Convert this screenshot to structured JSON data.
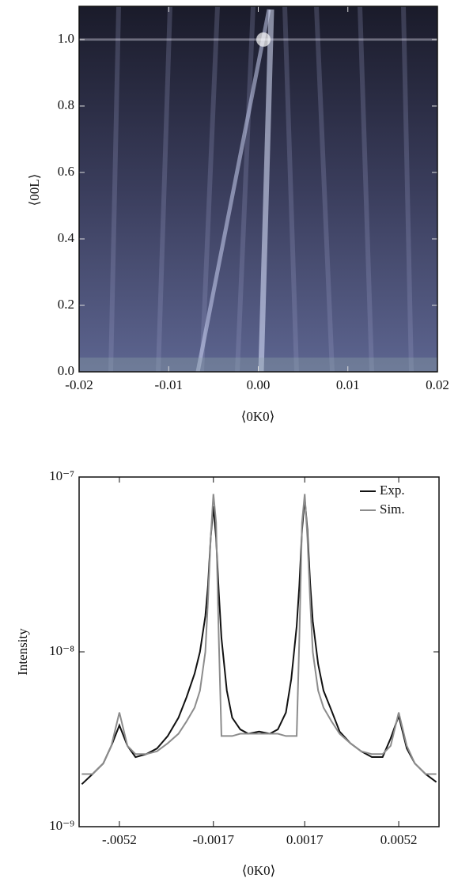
{
  "chart_data": [
    {
      "type": "image",
      "x_label": "⟨0K0⟩",
      "y_label": "⟨00L⟩",
      "xlim": [
        -0.02,
        0.02
      ],
      "ylim": [
        0,
        1.1
      ],
      "xticks": [
        -0.02,
        -0.01,
        {
          "value": 0,
          "label": "0.00"
        },
        0.01,
        0.02
      ],
      "yticks": [
        {
          "value": 0,
          "label": "0.0"
        },
        0.2,
        0.4,
        0.6,
        0.8,
        {
          "value": 1,
          "label": "1.0"
        }
      ]
    },
    {
      "type": "line",
      "x_label": "⟨0K0⟩",
      "y_label": "Intensity",
      "log_y": true,
      "legend": "upper right",
      "xlim": [
        -0.0067,
        0.0067
      ],
      "ylim": [
        1e-09,
        1e-07
      ],
      "xticks": [
        {
          "value": -0.0052,
          "label": "-.0052"
        },
        -0.0017,
        0.0017,
        0.0052
      ],
      "yticks": [
        {
          "value": 1e-09,
          "label": "10⁻⁹"
        },
        {
          "value": 1e-08,
          "label": "10⁻⁸"
        },
        {
          "value": 1e-07,
          "label": "10⁻⁷"
        }
      ],
      "x": [
        -0.0066,
        -0.0062,
        -0.0058,
        -0.0055,
        -0.0052,
        -0.0049,
        -0.0046,
        -0.0042,
        -0.0038,
        -0.0034,
        -0.003,
        -0.0027,
        -0.0024,
        -0.0022,
        -0.002,
        -0.0019,
        -0.0018,
        -0.0017,
        -0.0016,
        -0.0015,
        -0.0014,
        -0.0012,
        -0.001,
        -0.0007,
        -0.0004,
        0,
        0.0004,
        0.0007,
        0.001,
        0.0012,
        0.0014,
        0.0015,
        0.0016,
        0.0017,
        0.0018,
        0.0019,
        0.002,
        0.0022,
        0.0024,
        0.0027,
        0.003,
        0.0034,
        0.0038,
        0.0042,
        0.0046,
        0.0049,
        0.0052,
        0.0055,
        0.0058,
        0.0062,
        0.0066
      ],
      "series": [
        {
          "name": "Exp.",
          "color": "#111111",
          "values": [
            1.75e-09,
            2e-09,
            2.3e-09,
            2.9e-09,
            3.8e-09,
            2.9e-09,
            2.5e-09,
            2.6e-09,
            2.8e-09,
            3.3e-09,
            4.2e-09,
            5.5e-09,
            7.5e-09,
            1e-08,
            1.6e-08,
            2.4e-08,
            4.5e-08,
            6.8e-08,
            4.5e-08,
            2.2e-08,
            1.2e-08,
            6e-09,
            4.2e-09,
            3.6e-09,
            3.4e-09,
            3.5e-09,
            3.4e-09,
            3.6e-09,
            4.5e-09,
            7e-09,
            1.4e-08,
            2.4e-08,
            5e-08,
            7.5e-08,
            5e-08,
            2.5e-08,
            1.5e-08,
            8.5e-09,
            6e-09,
            4.6e-09,
            3.5e-09,
            3e-09,
            2.7e-09,
            2.5e-09,
            2.5e-09,
            3.2e-09,
            4.3e-09,
            2.8e-09,
            2.3e-09,
            2e-09,
            1.8e-09
          ]
        },
        {
          "name": "Sim.",
          "color": "#8c8c8c",
          "values": [
            2e-09,
            2e-09,
            2.3e-09,
            2.9e-09,
            4.5e-09,
            2.9e-09,
            2.6e-09,
            2.6e-09,
            2.7e-09,
            3e-09,
            3.4e-09,
            4e-09,
            4.8e-09,
            6e-09,
            1e-08,
            2e-08,
            4.5e-08,
            8e-08,
            5.5e-08,
            1.2e-08,
            3.3e-09,
            3.3e-09,
            3.3e-09,
            3.4e-09,
            3.4e-09,
            3.4e-09,
            3.4e-09,
            3.4e-09,
            3.3e-09,
            3.3e-09,
            3.3e-09,
            1.2e-08,
            5.5e-08,
            8e-08,
            4.5e-08,
            2e-08,
            1e-08,
            6e-09,
            4.8e-09,
            4e-09,
            3.4e-09,
            3e-09,
            2.7e-09,
            2.6e-09,
            2.6e-09,
            2.9e-09,
            4.5e-09,
            2.9e-09,
            2.3e-09,
            2e-09,
            2e-09
          ]
        }
      ]
    }
  ]
}
